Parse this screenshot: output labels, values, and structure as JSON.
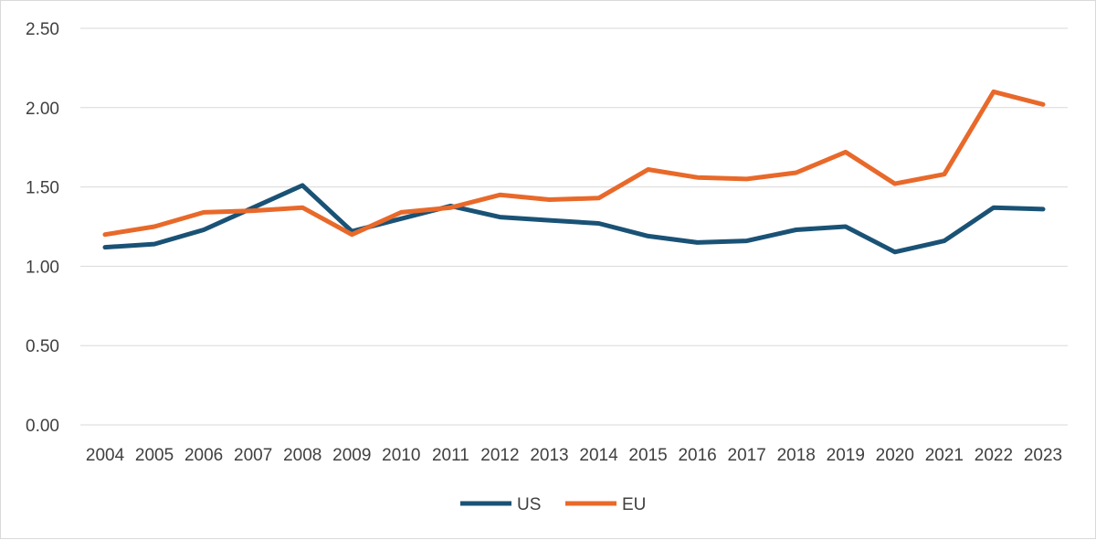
{
  "chart_data": {
    "type": "line",
    "title": "",
    "xlabel": "",
    "ylabel": "",
    "categories": [
      "2004",
      "2005",
      "2006",
      "2007",
      "2008",
      "2009",
      "2010",
      "2011",
      "2012",
      "2013",
      "2014",
      "2015",
      "2016",
      "2017",
      "2018",
      "2019",
      "2020",
      "2021",
      "2022",
      "2023"
    ],
    "series": [
      {
        "name": "US",
        "color": "#1a5276",
        "values": [
          1.12,
          1.14,
          1.23,
          1.37,
          1.51,
          1.22,
          1.3,
          1.38,
          1.31,
          1.29,
          1.27,
          1.19,
          1.15,
          1.16,
          1.23,
          1.25,
          1.09,
          1.16,
          1.37,
          1.36
        ]
      },
      {
        "name": "EU",
        "color": "#e8692a",
        "values": [
          1.2,
          1.25,
          1.34,
          1.35,
          1.37,
          1.2,
          1.34,
          1.37,
          1.45,
          1.42,
          1.43,
          1.61,
          1.56,
          1.55,
          1.59,
          1.72,
          1.52,
          1.58,
          2.1,
          2.02
        ]
      }
    ],
    "ylim": [
      0,
      2.5
    ],
    "yticks": [
      "0.00",
      "0.50",
      "1.00",
      "1.50",
      "2.00",
      "2.50"
    ],
    "grid": true,
    "gridColor": "#d9d9d9",
    "legend": "bottom-center"
  }
}
